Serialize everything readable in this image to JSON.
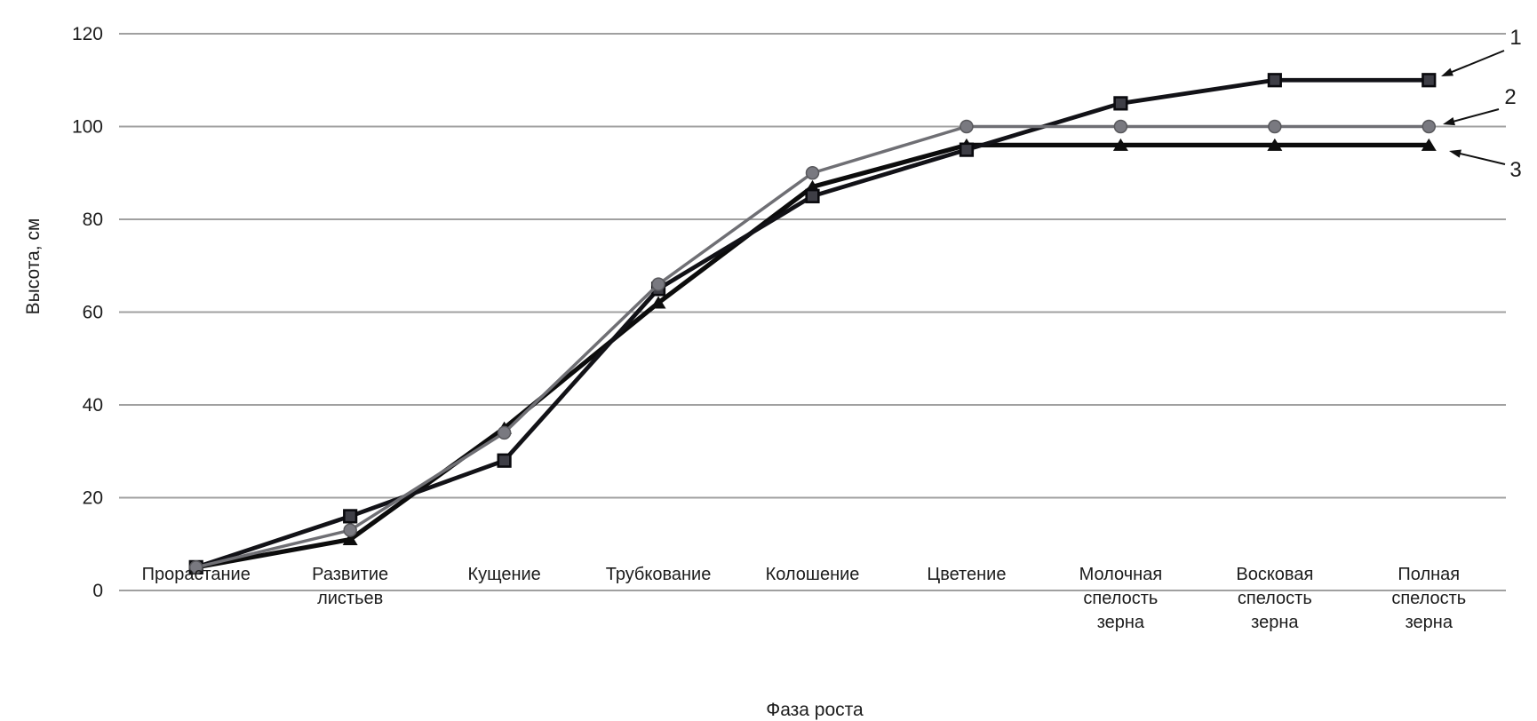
{
  "chart_data": {
    "type": "line",
    "title": "",
    "xlabel": "Фаза роста",
    "ylabel": "Высота, см",
    "ylim": [
      0,
      120
    ],
    "yticks": [
      0,
      20,
      40,
      60,
      80,
      100,
      120
    ],
    "grid": true,
    "legend_position": "right-edge arrow annotations",
    "categories": [
      "Прорастание",
      "Развитие листьев",
      "Кущение",
      "Трубкование",
      "Колошение",
      "Цветение",
      "Молочная спелость зерна",
      "Восковая спелость зерна",
      "Полная спелость зерна"
    ],
    "categories_multiline": [
      "Прорастание",
      "Развитие\nлистьев",
      "Кущение",
      "Трубкование",
      "Колошение",
      "Цветение",
      "Молочная\nспелость\nзерна",
      "Восковая\nспелость\nзерна",
      "Полная\nспелость\nзерна"
    ],
    "series": [
      {
        "name": "1",
        "marker": "square",
        "color": "#121217",
        "marker_fill": "#3e3e46",
        "values": [
          5,
          16,
          28,
          65,
          85,
          95,
          105,
          110,
          110
        ]
      },
      {
        "name": "2",
        "marker": "circle",
        "color": "#6f6f74",
        "marker_fill": "#797980",
        "values": [
          5,
          13,
          34,
          66,
          90,
          100,
          100,
          100,
          100
        ]
      },
      {
        "name": "3",
        "marker": "triangle",
        "color": "#0c0c0c",
        "marker_fill": "#0d0d0d",
        "values": [
          5,
          11,
          35,
          62,
          87,
          96,
          96,
          96,
          96
        ]
      }
    ]
  },
  "colors": {
    "background": "#ffffff",
    "grid": "#a0a0a0",
    "text": "#1c1c1c"
  }
}
